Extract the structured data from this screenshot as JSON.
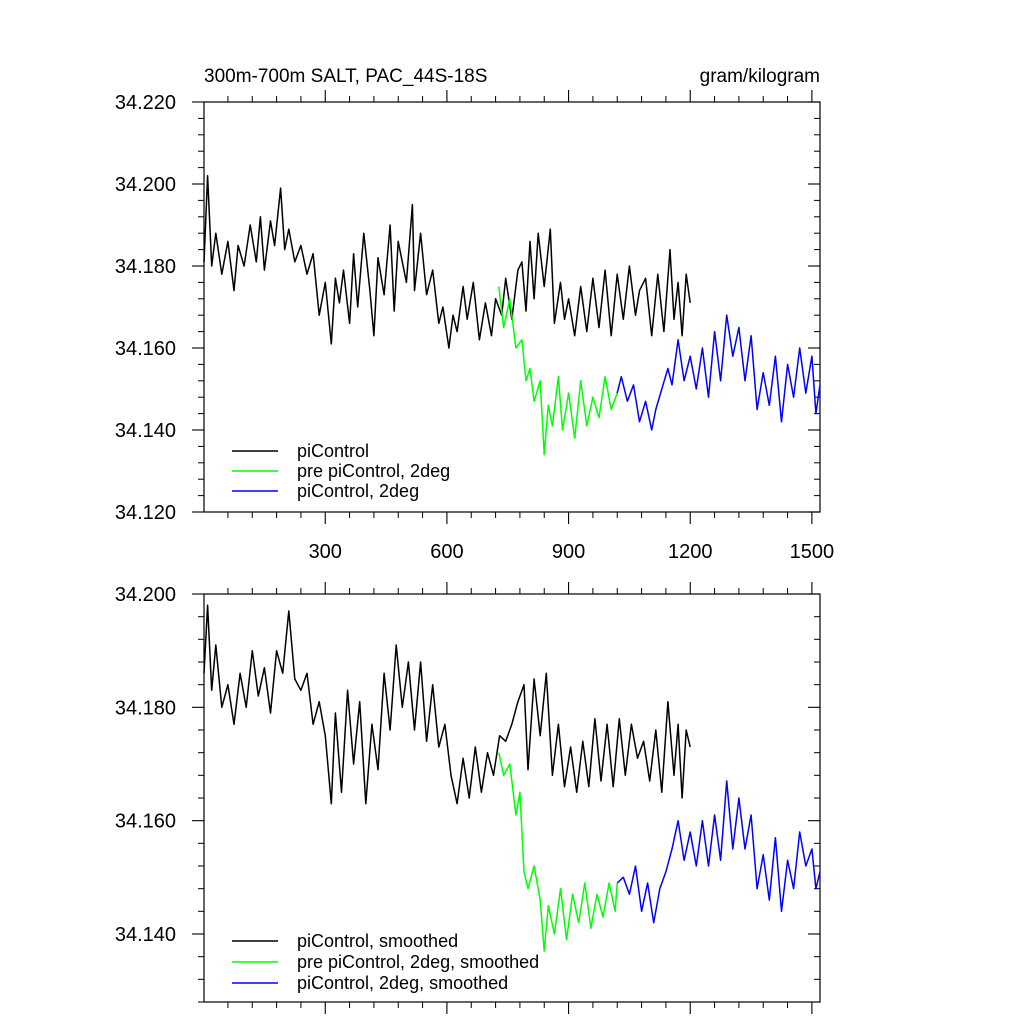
{
  "chart_data": [
    {
      "type": "line",
      "title": "300m-700m SALT, PAC_44S-18S",
      "units_label": "gram/kilogram",
      "xlim": [
        1,
        1520
      ],
      "ylim": [
        34.12,
        34.22
      ],
      "x_ticks": [
        300,
        600,
        900,
        1200,
        1500
      ],
      "x_tick_labels": [
        "300",
        "600",
        "900",
        "1200",
        "1500"
      ],
      "y_ticks": [
        34.12,
        34.14,
        34.16,
        34.18,
        34.2,
        34.22
      ],
      "y_tick_labels": [
        "34.120",
        "34.140",
        "34.160",
        "34.180",
        "34.200",
        "34.220"
      ],
      "legend_position": "bottom-left",
      "grid": false,
      "series": [
        {
          "name": "piControl",
          "color": "#000000",
          "x": [
            1,
            10,
            20,
            30,
            45,
            60,
            75,
            85,
            100,
            115,
            130,
            140,
            150,
            165,
            175,
            190,
            200,
            210,
            225,
            240,
            255,
            270,
            285,
            300,
            315,
            325,
            335,
            345,
            360,
            370,
            380,
            395,
            410,
            420,
            430,
            445,
            460,
            470,
            480,
            500,
            515,
            520,
            535,
            550,
            565,
            580,
            590,
            605,
            615,
            625,
            640,
            650,
            665,
            680,
            695,
            710,
            720,
            735,
            745,
            760,
            775,
            785,
            795,
            805,
            815,
            825,
            840,
            855,
            865,
            880,
            890,
            900,
            915,
            930,
            945,
            960,
            975,
            990,
            1005,
            1020,
            1035,
            1050,
            1065,
            1075,
            1090,
            1105,
            1120,
            1135,
            1150,
            1160,
            1170,
            1180,
            1190,
            1200
          ],
          "values": [
            34.181,
            34.202,
            34.18,
            34.188,
            34.178,
            34.186,
            34.174,
            34.185,
            34.18,
            34.19,
            34.181,
            34.192,
            34.179,
            34.191,
            34.185,
            34.199,
            34.184,
            34.189,
            34.181,
            34.185,
            34.178,
            34.183,
            34.168,
            34.176,
            34.161,
            34.177,
            34.171,
            34.179,
            34.166,
            34.183,
            34.17,
            34.188,
            34.174,
            34.163,
            34.182,
            34.173,
            34.19,
            34.169,
            34.186,
            34.176,
            34.195,
            34.174,
            34.188,
            34.173,
            34.179,
            34.166,
            34.17,
            34.16,
            34.168,
            34.164,
            34.175,
            34.167,
            34.176,
            34.162,
            34.171,
            34.163,
            34.172,
            34.168,
            34.177,
            34.167,
            34.179,
            34.181,
            34.169,
            34.186,
            34.172,
            34.188,
            34.175,
            34.189,
            34.166,
            34.176,
            34.167,
            34.172,
            34.163,
            34.175,
            34.164,
            34.177,
            34.165,
            34.179,
            34.163,
            34.178,
            34.167,
            34.18,
            34.168,
            34.174,
            34.177,
            34.163,
            34.178,
            34.164,
            34.184,
            34.167,
            34.176,
            34.163,
            34.178,
            34.171
          ]
        },
        {
          "name": "pre piControl, 2deg",
          "color": "#00ff00",
          "x": [
            728,
            740,
            755,
            770,
            785,
            795,
            805,
            815,
            830,
            840,
            850,
            860,
            875,
            885,
            900,
            915,
            930,
            945,
            960,
            975,
            990,
            1005,
            1020
          ],
          "values": [
            34.175,
            34.165,
            34.172,
            34.16,
            34.162,
            34.152,
            34.155,
            34.147,
            34.152,
            34.134,
            34.146,
            34.141,
            34.153,
            34.14,
            34.149,
            34.138,
            34.152,
            34.141,
            34.148,
            34.143,
            34.153,
            34.145,
            34.149
          ]
        },
        {
          "name": "piControl, 2deg",
          "color": "#0000ff",
          "x": [
            1020,
            1030,
            1045,
            1060,
            1075,
            1090,
            1105,
            1115,
            1130,
            1145,
            1155,
            1170,
            1185,
            1200,
            1215,
            1230,
            1245,
            1260,
            1275,
            1290,
            1305,
            1320,
            1335,
            1350,
            1365,
            1380,
            1395,
            1410,
            1425,
            1440,
            1455,
            1470,
            1485,
            1500,
            1510,
            1520
          ],
          "values": [
            34.149,
            34.153,
            34.147,
            34.151,
            34.142,
            34.147,
            34.14,
            34.145,
            34.15,
            34.155,
            34.151,
            34.162,
            34.152,
            34.158,
            34.15,
            34.16,
            34.148,
            34.164,
            34.152,
            34.168,
            34.158,
            34.165,
            34.152,
            34.163,
            34.145,
            34.154,
            34.146,
            34.158,
            34.142,
            34.156,
            34.148,
            34.16,
            34.149,
            34.158,
            34.144,
            34.151
          ]
        }
      ]
    },
    {
      "type": "line",
      "title": "",
      "xlim": [
        1,
        1520
      ],
      "ylim": [
        34.128,
        34.2
      ],
      "x_ticks": [
        300,
        600,
        900,
        1200,
        1500
      ],
      "x_tick_labels": [],
      "y_ticks": [
        34.14,
        34.16,
        34.18,
        34.2
      ],
      "y_tick_labels": [
        "34.140",
        "34.160",
        "34.180",
        "34.200"
      ],
      "legend_position": "bottom-left",
      "grid": false,
      "series": [
        {
          "name": "piControl, smoothed",
          "color": "#000000",
          "x": [
            1,
            10,
            20,
            30,
            45,
            60,
            75,
            90,
            105,
            120,
            135,
            150,
            165,
            180,
            195,
            210,
            225,
            240,
            255,
            270,
            285,
            300,
            315,
            325,
            340,
            355,
            370,
            385,
            400,
            415,
            430,
            445,
            460,
            475,
            490,
            505,
            520,
            535,
            550,
            565,
            580,
            595,
            610,
            625,
            640,
            655,
            670,
            685,
            700,
            715,
            730,
            745,
            760,
            775,
            790,
            800,
            815,
            830,
            845,
            860,
            875,
            890,
            905,
            920,
            935,
            950,
            965,
            980,
            995,
            1010,
            1025,
            1040,
            1055,
            1070,
            1085,
            1100,
            1115,
            1130,
            1145,
            1160,
            1170,
            1180,
            1190,
            1200
          ],
          "values": [
            34.186,
            34.198,
            34.183,
            34.191,
            34.18,
            34.184,
            34.177,
            34.186,
            34.18,
            34.19,
            34.182,
            34.187,
            34.179,
            34.19,
            34.186,
            34.197,
            34.185,
            34.183,
            34.186,
            34.177,
            34.181,
            34.175,
            34.163,
            34.179,
            34.165,
            34.183,
            34.17,
            34.181,
            34.163,
            34.177,
            34.169,
            34.186,
            34.176,
            34.191,
            34.18,
            34.188,
            34.176,
            34.188,
            34.174,
            34.184,
            34.173,
            34.177,
            34.168,
            34.163,
            34.171,
            34.164,
            34.173,
            34.165,
            34.172,
            34.168,
            34.175,
            34.174,
            34.177,
            34.181,
            34.184,
            34.169,
            34.185,
            34.175,
            34.186,
            34.168,
            34.177,
            34.166,
            34.173,
            34.165,
            34.174,
            34.166,
            34.178,
            34.167,
            34.177,
            34.166,
            34.178,
            34.168,
            34.177,
            34.171,
            34.174,
            34.167,
            34.176,
            34.165,
            34.181,
            34.168,
            34.177,
            34.164,
            34.176,
            34.173
          ]
        },
        {
          "name": "pre piControl, 2deg, smoothed",
          "color": "#00ff00",
          "x": [
            728,
            740,
            755,
            770,
            780,
            790,
            800,
            815,
            830,
            840,
            850,
            865,
            880,
            895,
            910,
            925,
            940,
            955,
            970,
            985,
            1000,
            1015,
            1020
          ],
          "values": [
            34.172,
            34.168,
            34.17,
            34.161,
            34.165,
            34.151,
            34.148,
            34.152,
            34.146,
            34.137,
            34.145,
            34.14,
            34.148,
            34.139,
            34.147,
            34.142,
            34.149,
            34.141,
            34.147,
            34.143,
            34.149,
            34.144,
            34.149
          ]
        },
        {
          "name": "piControl, 2deg, smoothed",
          "color": "#0000ff",
          "x": [
            1020,
            1035,
            1050,
            1065,
            1080,
            1095,
            1110,
            1125,
            1140,
            1155,
            1170,
            1185,
            1200,
            1215,
            1230,
            1245,
            1260,
            1275,
            1290,
            1305,
            1320,
            1335,
            1350,
            1365,
            1380,
            1395,
            1410,
            1425,
            1440,
            1455,
            1470,
            1485,
            1500,
            1510,
            1520
          ],
          "values": [
            34.149,
            34.15,
            34.147,
            34.152,
            34.144,
            34.149,
            34.142,
            34.148,
            34.151,
            34.155,
            34.16,
            34.153,
            34.158,
            34.152,
            34.16,
            34.152,
            34.161,
            34.153,
            34.167,
            34.155,
            34.164,
            34.155,
            34.161,
            34.148,
            34.154,
            34.146,
            34.157,
            34.144,
            34.153,
            34.148,
            34.158,
            34.152,
            34.155,
            34.148,
            34.151
          ]
        }
      ]
    }
  ]
}
